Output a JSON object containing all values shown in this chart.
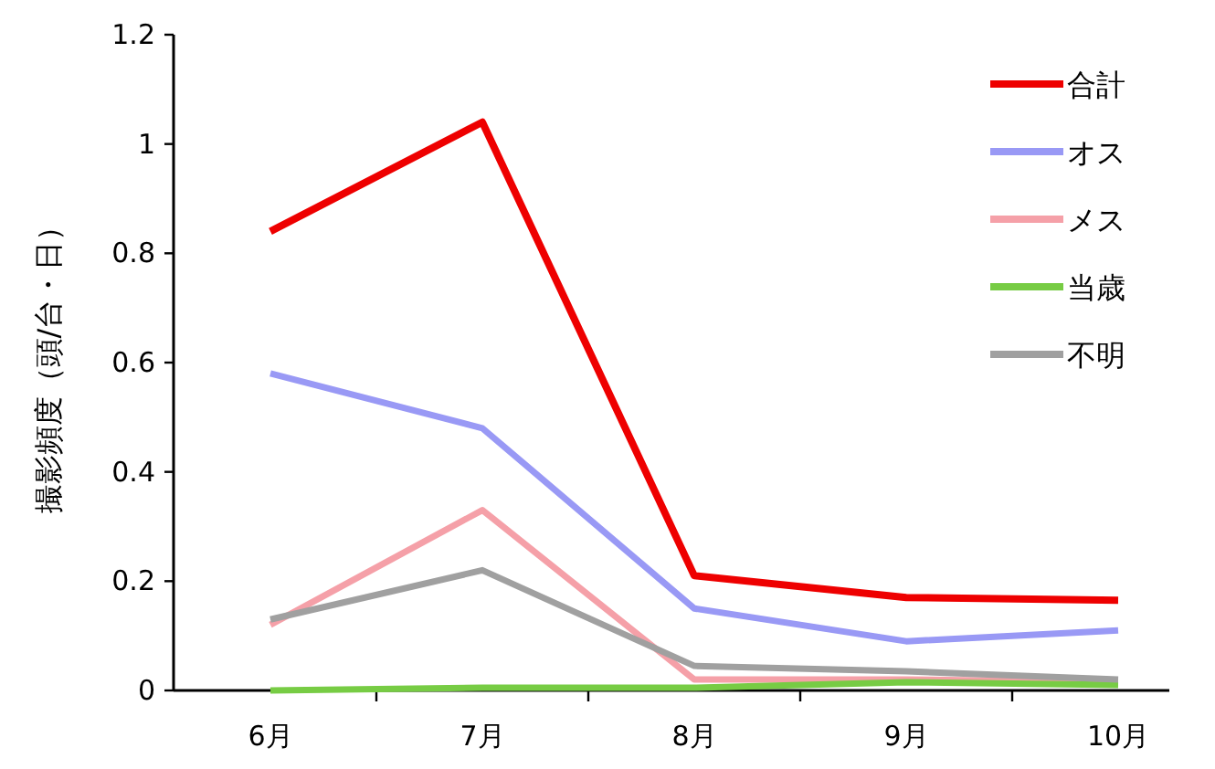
{
  "chart_data": {
    "type": "line",
    "ylabel": "撮影頻度（頭/台・日）",
    "categories": [
      "6月",
      "7月",
      "8月",
      "9月",
      "10月"
    ],
    "series": [
      {
        "name": "合計",
        "color": "#ee0000",
        "values": [
          0.84,
          1.04,
          0.21,
          0.17,
          0.165
        ]
      },
      {
        "name": "オス",
        "color": "#9999f5",
        "values": [
          0.58,
          0.48,
          0.15,
          0.09,
          0.11
        ]
      },
      {
        "name": "メス",
        "color": "#f5a0a8",
        "values": [
          0.12,
          0.33,
          0.02,
          0.02,
          0.015
        ]
      },
      {
        "name": "当歳",
        "color": "#77cc44",
        "values": [
          0,
          0.005,
          0.005,
          0.015,
          0.01
        ]
      },
      {
        "name": "不明",
        "color": "#a0a0a0",
        "values": [
          0.13,
          0.22,
          0.045,
          0.035,
          0.02
        ]
      }
    ],
    "ylim": [
      0,
      1.2
    ],
    "yticks": [
      0,
      0.2,
      0.4,
      0.6,
      0.8,
      1,
      1.2
    ],
    "legend": "top right",
    "marker": "none",
    "line_style": "solid",
    "grid": false
  }
}
